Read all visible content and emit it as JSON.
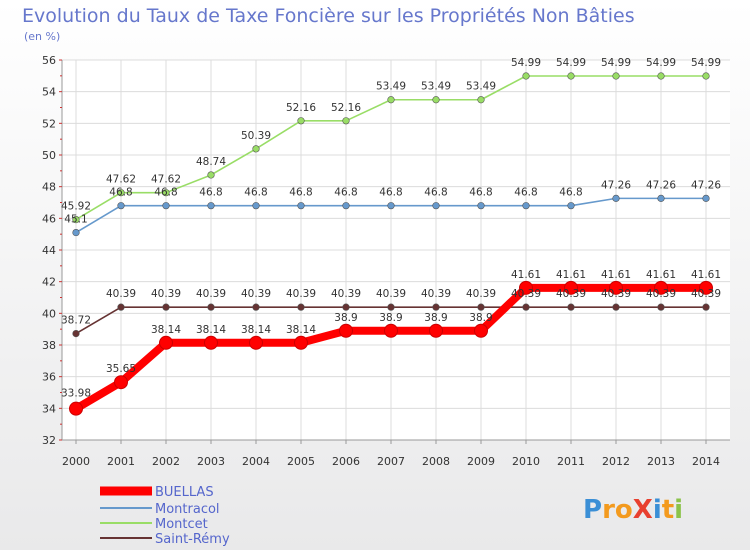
{
  "chart_data": {
    "type": "line",
    "title": "Evolution du Taux de Taxe Foncière sur les Propriétés Non Bâties",
    "ylabel": "(en %)",
    "xlabel": "",
    "categories": [
      "2000",
      "2001",
      "2002",
      "2003",
      "2004",
      "2005",
      "2006",
      "2007",
      "2008",
      "2009",
      "2010",
      "2011",
      "2012",
      "2013",
      "2014"
    ],
    "ylim": [
      32,
      56
    ],
    "yticks": [
      32,
      34,
      36,
      38,
      40,
      42,
      44,
      46,
      48,
      50,
      52,
      54,
      56
    ],
    "grid": true,
    "legend_position": "bottom-left",
    "series": [
      {
        "name": "BUELLAS",
        "color": "#ff0000",
        "values": [
          33.98,
          35.65,
          38.14,
          38.14,
          38.14,
          38.14,
          38.9,
          38.9,
          38.9,
          38.9,
          41.61,
          41.61,
          41.61,
          41.61,
          41.61
        ],
        "labels": [
          "33.98",
          "35.65",
          "38.14",
          "38.14",
          "38.14",
          "38.14",
          "38.9",
          "38.9",
          "38.9",
          "38.9",
          "41.61",
          "41.61",
          "41.61",
          "41.61",
          "41.61"
        ]
      },
      {
        "name": "Montracol",
        "color": "#6699cc",
        "values": [
          45.1,
          46.8,
          46.8,
          46.8,
          46.8,
          46.8,
          46.8,
          46.8,
          46.8,
          46.8,
          46.8,
          46.8,
          47.26,
          47.26,
          47.26
        ],
        "labels": [
          "45.1",
          "46.8",
          "46.8",
          "46.8",
          "46.8",
          "46.8",
          "46.8",
          "46.8",
          "46.8",
          "46.8",
          "46.8",
          "46.8",
          "47.26",
          "47.26",
          "47.26"
        ]
      },
      {
        "name": "Montcet",
        "color": "#99dd66",
        "values": [
          45.92,
          47.62,
          47.62,
          48.74,
          50.39,
          52.16,
          52.16,
          53.49,
          53.49,
          53.49,
          54.99,
          54.99,
          54.99,
          54.99,
          54.99
        ],
        "labels": [
          "45.92",
          "47.62",
          "47.62",
          "48.74",
          "50.39",
          "52.16",
          "52.16",
          "53.49",
          "53.49",
          "53.49",
          "54.99",
          "54.99",
          "54.99",
          "54.99",
          "54.99"
        ]
      },
      {
        "name": "Saint-Rémy",
        "color": "#663333",
        "values": [
          38.72,
          40.39,
          40.39,
          40.39,
          40.39,
          40.39,
          40.39,
          40.39,
          40.39,
          40.39,
          40.39,
          40.39,
          40.39,
          40.39,
          40.39
        ],
        "labels": [
          "38.72",
          "40.39",
          "40.39",
          "40.39",
          "40.39",
          "40.39",
          "40.39",
          "40.39",
          "40.39",
          "40.39",
          "40.39",
          "40.39",
          "40.39",
          "40.39",
          "40.39"
        ]
      }
    ]
  },
  "logo": {
    "text": "ProXiti",
    "letters": [
      "P",
      "r",
      "o",
      "X",
      "i",
      "t",
      "i"
    ],
    "colors": [
      "#3b8fd6",
      "#f39a1e",
      "#f39a1e",
      "#e8402f",
      "#3b8fd6",
      "#f39a1e",
      "#8bc34a"
    ]
  }
}
